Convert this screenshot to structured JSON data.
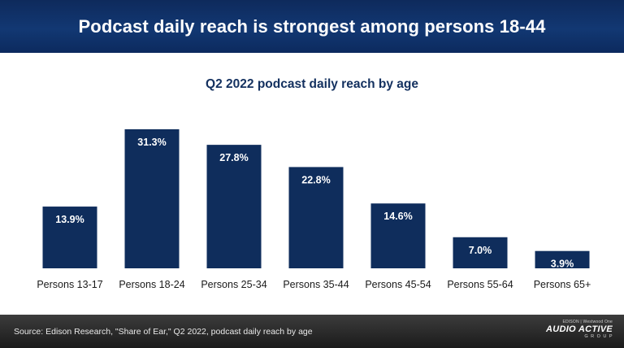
{
  "header": {
    "title": "Podcast daily reach is strongest among persons 18-44"
  },
  "footer": {
    "source": "Source: Edison Research, \"Share of Ear,\" Q2 2022, podcast daily reach by age",
    "logo_top": "EDISON | Westwood One",
    "logo_main": "AUDIO ACTIVE",
    "logo_sub": "GROUP"
  },
  "colors": {
    "bar": "#0f2d5c",
    "header": "#123873",
    "footer": "#2a2a2a"
  },
  "chart_data": {
    "type": "bar",
    "title": "Q2 2022 podcast daily reach by age",
    "categories": [
      "Persons 13-17",
      "Persons 18-24",
      "Persons 25-34",
      "Persons 35-44",
      "Persons 45-54",
      "Persons 55-64",
      "Persons 65+"
    ],
    "values": [
      13.9,
      31.3,
      27.8,
      22.8,
      14.6,
      7.0,
      3.9
    ],
    "value_labels": [
      "13.9%",
      "31.3%",
      "27.8%",
      "22.8%",
      "14.6%",
      "7.0%",
      "3.9%"
    ],
    "xlabel": "",
    "ylabel": "",
    "ylim": [
      0,
      31.3
    ],
    "grid": false,
    "legend": "none"
  }
}
